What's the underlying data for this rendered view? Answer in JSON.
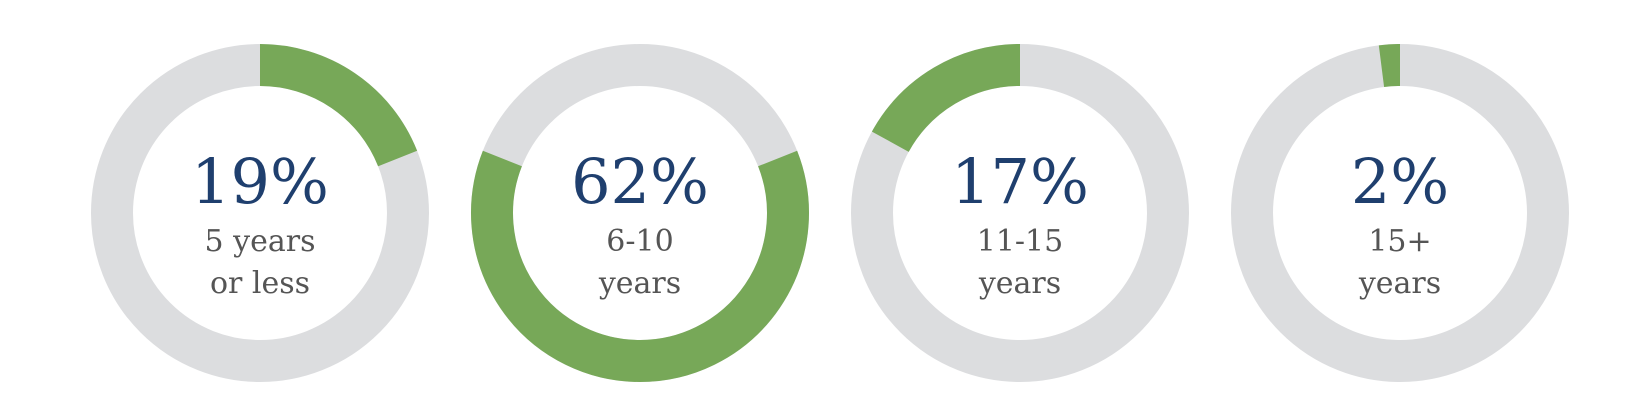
{
  "chart_data": {
    "type": "pie",
    "donut": true,
    "colors": {
      "filled": "#77a858",
      "remaining": "#dcdddf"
    },
    "slices": [
      {
        "value": 19,
        "label": "19%",
        "category_lines": [
          "5 years",
          "or less"
        ]
      },
      {
        "value": 62,
        "label": "62%",
        "category_lines": [
          "6-10",
          "years"
        ]
      },
      {
        "value": 17,
        "label": "17%",
        "category_lines": [
          "11-15",
          "years"
        ]
      },
      {
        "value": 2,
        "label": "2%",
        "category_lines": [
          "15+",
          "years"
        ]
      }
    ]
  }
}
